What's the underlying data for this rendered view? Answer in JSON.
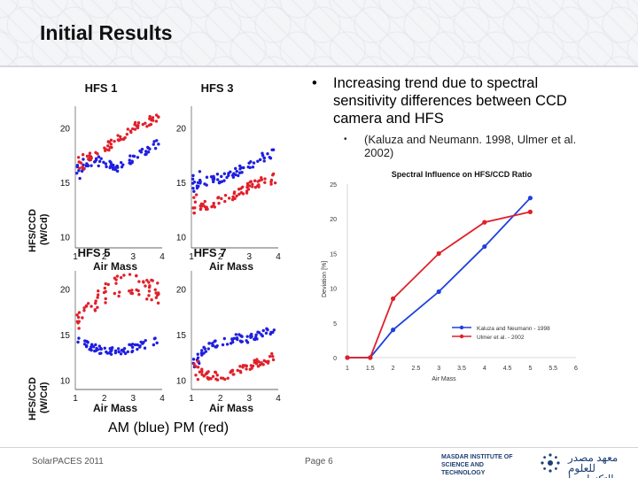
{
  "slide": {
    "title": "Initial Results",
    "caption": "AM (blue)  PM (red)",
    "bullet": "Increasing trend due to spectral sensitivity differences between CCD camera and HFS",
    "sub_bullet": "(Kaluza and Neumann. 1998, Ulmer et al. 2002)",
    "bullet_symbol": "•",
    "footer_left": "SolarPACES 2011",
    "footer_page": "Page 6",
    "logo_en": "MASDAR INSTITUTE OF SCIENCE AND TECHNOLOGY",
    "logo_ar": "معهد مصدر للعلوم والتكنولوجيا"
  },
  "colors": {
    "am": "#1f1fe0",
    "pm": "#e0202a",
    "header": "#eef0f3",
    "logo": "#1c3f73"
  },
  "scatter_panels": {
    "y_axis_label_line1": "HFS/CCD",
    "y_axis_label_line2": "(W/Cd)",
    "x_axis_label": "Air Mass",
    "x_ticks": [
      "1",
      "2",
      "3",
      "4"
    ],
    "y_ticks": [
      "10",
      "15",
      "20"
    ],
    "panels": [
      {
        "title": "HFS 1",
        "am_trend": [
          [
            1.05,
            16.4
          ],
          [
            1.6,
            17.0
          ],
          [
            2.0,
            16.9
          ],
          [
            2.5,
            16.4
          ],
          [
            3.0,
            17.2
          ],
          [
            3.5,
            18.0
          ],
          [
            3.9,
            18.6
          ]
        ],
        "pm_trend": [
          [
            1.05,
            16.8
          ],
          [
            1.5,
            17.3
          ],
          [
            2.0,
            18.1
          ],
          [
            2.5,
            19.0
          ],
          [
            3.0,
            20.0
          ],
          [
            3.5,
            20.6
          ],
          [
            3.9,
            20.9
          ]
        ]
      },
      {
        "title": "HFS 3",
        "am_trend": [
          [
            1.05,
            15.0
          ],
          [
            1.5,
            15.2
          ],
          [
            2.0,
            15.4
          ],
          [
            2.5,
            15.9
          ],
          [
            3.0,
            16.6
          ],
          [
            3.5,
            17.3
          ],
          [
            3.9,
            17.8
          ]
        ],
        "pm_trend": [
          [
            1.05,
            12.8
          ],
          [
            1.5,
            12.9
          ],
          [
            2.0,
            13.3
          ],
          [
            2.5,
            13.9
          ],
          [
            3.0,
            14.6
          ],
          [
            3.5,
            15.1
          ],
          [
            3.9,
            15.4
          ]
        ]
      },
      {
        "title": "HFS 5",
        "am_trend": [
          [
            1.05,
            14.8
          ],
          [
            1.5,
            13.7
          ],
          [
            2.0,
            13.2
          ],
          [
            2.5,
            13.2
          ],
          [
            3.0,
            13.6
          ],
          [
            3.5,
            14.0
          ],
          [
            3.9,
            14.6
          ]
        ],
        "pm_trend": [
          [
            1.05,
            16.5
          ],
          [
            1.5,
            18.0
          ],
          [
            2.0,
            19.6
          ],
          [
            2.5,
            20.4
          ],
          [
            3.0,
            20.6
          ],
          [
            3.5,
            20.0
          ],
          [
            3.9,
            19.6
          ]
        ]
      },
      {
        "title": "HFS 7",
        "am_trend": [
          [
            1.05,
            12.0
          ],
          [
            1.5,
            13.5
          ],
          [
            2.0,
            14.2
          ],
          [
            2.5,
            14.6
          ],
          [
            3.0,
            14.6
          ],
          [
            3.5,
            15.1
          ],
          [
            3.9,
            15.6
          ]
        ],
        "pm_trend": [
          [
            1.05,
            11.2
          ],
          [
            1.5,
            10.6
          ],
          [
            2.0,
            10.4
          ],
          [
            2.5,
            10.9
          ],
          [
            3.0,
            11.6
          ],
          [
            3.5,
            12.2
          ],
          [
            3.9,
            12.6
          ]
        ]
      }
    ]
  },
  "chart_data": {
    "type": "line",
    "title": "Spectral Influence on HFS/CCD Ratio",
    "xlabel": "Air Mass",
    "ylabel": "Deviation [%]",
    "x_ticks": [
      "1",
      "1.5",
      "2",
      "2.5",
      "3",
      "3.5",
      "4",
      "4.5",
      "5",
      "5.5",
      "6"
    ],
    "y_ticks": [
      "0",
      "5",
      "10",
      "15",
      "20",
      "25"
    ],
    "xlim": [
      1,
      6
    ],
    "ylim": [
      0,
      25
    ],
    "series": [
      {
        "name": "Kaluza and Neumann - 1998",
        "color": "#1f3fe0",
        "x": [
          1,
          1.5,
          2,
          3,
          4,
          5
        ],
        "y": [
          0,
          0,
          4,
          9.5,
          16,
          23
        ]
      },
      {
        "name": "Ulmer et al. - 2002",
        "color": "#e0202a",
        "x": [
          1,
          1.5,
          2,
          3,
          4,
          5
        ],
        "y": [
          0,
          0,
          8.5,
          15,
          19.5,
          21
        ]
      }
    ],
    "legend": "lower-right",
    "grid": false
  }
}
